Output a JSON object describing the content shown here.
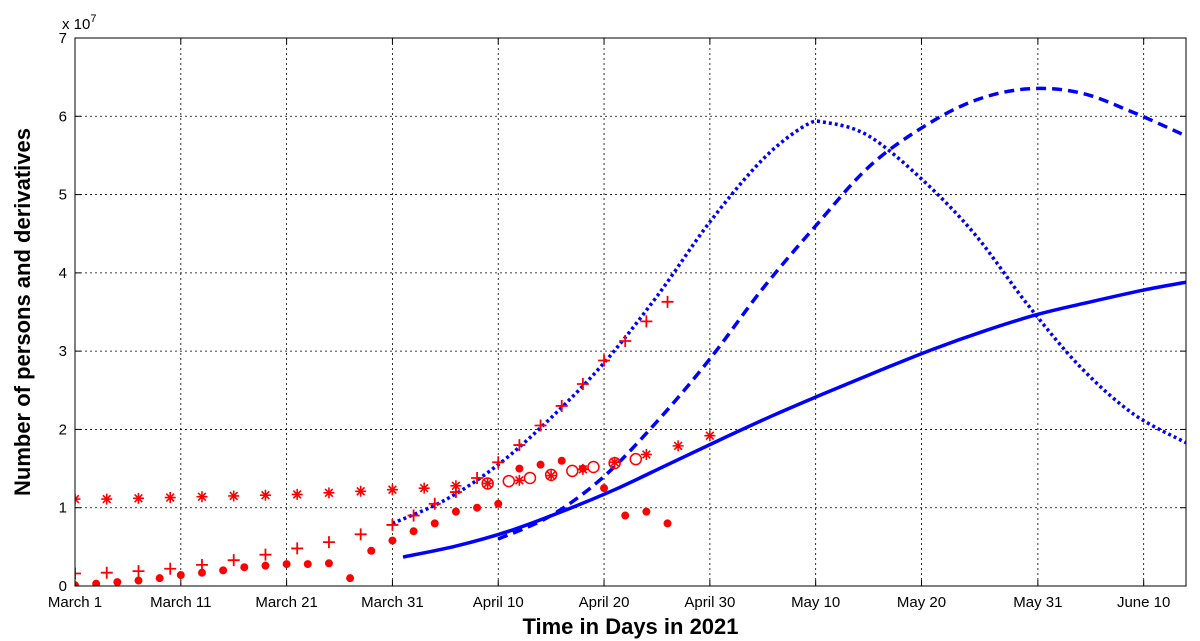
{
  "chart_data": {
    "type": "line",
    "xlabel": "Time in Days in 2021",
    "ylabel": "Number of persons and derivatives",
    "x_unit": "day",
    "x_start_date": "2021-03-01",
    "xlim": [
      "2021-03-01",
      "2021-06-14"
    ],
    "x_ticks": [
      {
        "date": "2021-03-01",
        "label": "March 1"
      },
      {
        "date": "2021-03-11",
        "label": "March 11"
      },
      {
        "date": "2021-03-21",
        "label": "March 21"
      },
      {
        "date": "2021-03-31",
        "label": "March 31"
      },
      {
        "date": "2021-04-10",
        "label": "April 10"
      },
      {
        "date": "2021-04-20",
        "label": "April 20"
      },
      {
        "date": "2021-04-30",
        "label": "April 30"
      },
      {
        "date": "2021-05-10",
        "label": "May 10"
      },
      {
        "date": "2021-05-20",
        "label": "May 20"
      },
      {
        "date": "2021-05-31",
        "label": "May 31"
      },
      {
        "date": "2021-06-10",
        "label": "June 10"
      }
    ],
    "ylim": [
      0,
      70000000
    ],
    "y_tick_values": [
      0,
      10000000,
      20000000,
      30000000,
      40000000,
      50000000,
      60000000,
      70000000
    ],
    "y_tick_labels": [
      "0",
      "1",
      "2",
      "3",
      "4",
      "5",
      "6",
      "7"
    ],
    "y_multiplier": {
      "base": "x 10",
      "exponent": "7"
    },
    "grid": true,
    "series": [
      {
        "kind": "model",
        "style": "solid",
        "color": "#0000ff",
        "x": [
          "2021-04-01",
          "2021-04-06",
          "2021-04-11",
          "2021-04-16",
          "2021-04-21",
          "2021-04-26",
          "2021-05-01",
          "2021-05-06",
          "2021-05-11",
          "2021-05-16",
          "2021-05-21",
          "2021-05-26",
          "2021-05-31",
          "2021-06-05",
          "2021-06-10",
          "2021-06-14"
        ],
        "y": [
          3700000,
          5100000,
          7000000,
          9500000,
          12300000,
          15500000,
          18700000,
          21800000,
          24700000,
          27500000,
          30200000,
          32600000,
          34700000,
          36300000,
          37800000,
          38800000
        ]
      },
      {
        "kind": "model",
        "style": "dotted",
        "color": "#0000ff",
        "x": [
          "2021-03-31",
          "2021-04-05",
          "2021-04-10",
          "2021-04-15",
          "2021-04-20",
          "2021-04-25",
          "2021-04-30",
          "2021-05-05",
          "2021-05-09",
          "2021-05-11",
          "2021-05-15",
          "2021-05-20",
          "2021-05-25",
          "2021-05-30",
          "2021-06-04",
          "2021-06-09",
          "2021-06-14"
        ],
        "y": [
          8000000,
          11000000,
          15500000,
          21500000,
          28500000,
          37000000,
          46500000,
          54500000,
          58800000,
          59200000,
          57500000,
          52000000,
          45000000,
          36000000,
          28000000,
          22000000,
          18300000
        ]
      },
      {
        "kind": "model",
        "style": "dashed",
        "color": "#0000ff",
        "x": [
          "2021-04-10",
          "2021-04-15",
          "2021-04-20",
          "2021-04-25",
          "2021-04-30",
          "2021-05-05",
          "2021-05-10",
          "2021-05-15",
          "2021-05-20",
          "2021-05-25",
          "2021-05-30",
          "2021-06-04",
          "2021-06-09",
          "2021-06-14"
        ],
        "y": [
          6000000,
          9000000,
          14000000,
          21000000,
          29000000,
          38000000,
          46000000,
          53500000,
          58500000,
          62000000,
          63500000,
          63000000,
          60500000,
          57500000
        ]
      },
      {
        "kind": "data",
        "marker": "asterisk",
        "color": "#ff0000",
        "x": [
          "2021-03-01",
          "2021-03-04",
          "2021-03-07",
          "2021-03-10",
          "2021-03-13",
          "2021-03-16",
          "2021-03-19",
          "2021-03-22",
          "2021-03-25",
          "2021-03-28",
          "2021-03-31",
          "2021-04-03",
          "2021-04-06",
          "2021-04-09",
          "2021-04-12",
          "2021-04-15",
          "2021-04-18",
          "2021-04-21",
          "2021-04-24",
          "2021-04-27",
          "2021-04-30"
        ],
        "y": [
          11100000,
          11100000,
          11200000,
          11300000,
          11400000,
          11500000,
          11600000,
          11700000,
          11900000,
          12100000,
          12300000,
          12500000,
          12800000,
          13100000,
          13500000,
          14100000,
          14900000,
          15800000,
          16800000,
          17900000,
          19200000
        ]
      },
      {
        "kind": "data",
        "marker": "circle-open",
        "color": "#ff0000",
        "x": [
          "2021-04-09",
          "2021-04-11",
          "2021-04-13",
          "2021-04-15",
          "2021-04-17",
          "2021-04-19",
          "2021-04-21",
          "2021-04-23"
        ],
        "y": [
          13100000,
          13400000,
          13800000,
          14200000,
          14700000,
          15200000,
          15700000,
          16200000
        ]
      },
      {
        "kind": "data",
        "marker": "plus",
        "color": "#ff0000",
        "x": [
          "2021-03-01",
          "2021-03-04",
          "2021-03-07",
          "2021-03-10",
          "2021-03-13",
          "2021-03-16",
          "2021-03-19",
          "2021-03-22",
          "2021-03-25",
          "2021-03-28",
          "2021-03-31",
          "2021-04-02",
          "2021-04-04",
          "2021-04-06",
          "2021-04-08",
          "2021-04-10",
          "2021-04-12",
          "2021-04-14",
          "2021-04-16",
          "2021-04-18",
          "2021-04-20",
          "2021-04-22",
          "2021-04-24",
          "2021-04-26"
        ],
        "y": [
          1600000,
          1700000,
          1900000,
          2200000,
          2700000,
          3300000,
          4000000,
          4800000,
          5600000,
          6600000,
          7800000,
          9000000,
          10500000,
          12000000,
          13800000,
          15800000,
          18000000,
          20500000,
          23000000,
          25800000,
          28800000,
          31300000,
          33800000,
          36300000
        ]
      },
      {
        "kind": "data",
        "marker": "dot",
        "color": "#ff0000",
        "x": [
          "2021-03-01",
          "2021-03-03",
          "2021-03-05",
          "2021-03-07",
          "2021-03-09",
          "2021-03-11",
          "2021-03-13",
          "2021-03-15",
          "2021-03-17",
          "2021-03-19",
          "2021-03-21",
          "2021-03-23",
          "2021-03-25",
          "2021-03-27",
          "2021-03-29",
          "2021-03-31",
          "2021-04-02",
          "2021-04-04",
          "2021-04-06",
          "2021-04-08",
          "2021-04-10",
          "2021-04-12",
          "2021-04-14",
          "2021-04-16",
          "2021-04-18",
          "2021-04-20",
          "2021-04-22",
          "2021-04-24",
          "2021-04-26"
        ],
        "y": [
          100000,
          300000,
          500000,
          700000,
          1000000,
          1400000,
          1700000,
          2000000,
          2400000,
          2600000,
          2800000,
          2800000,
          2900000,
          1000000,
          4500000,
          5800000,
          7000000,
          8000000,
          9500000,
          10000000,
          10500000,
          15000000,
          15500000,
          16000000,
          15000000,
          12500000,
          9000000,
          9500000,
          8000000
        ]
      }
    ]
  }
}
